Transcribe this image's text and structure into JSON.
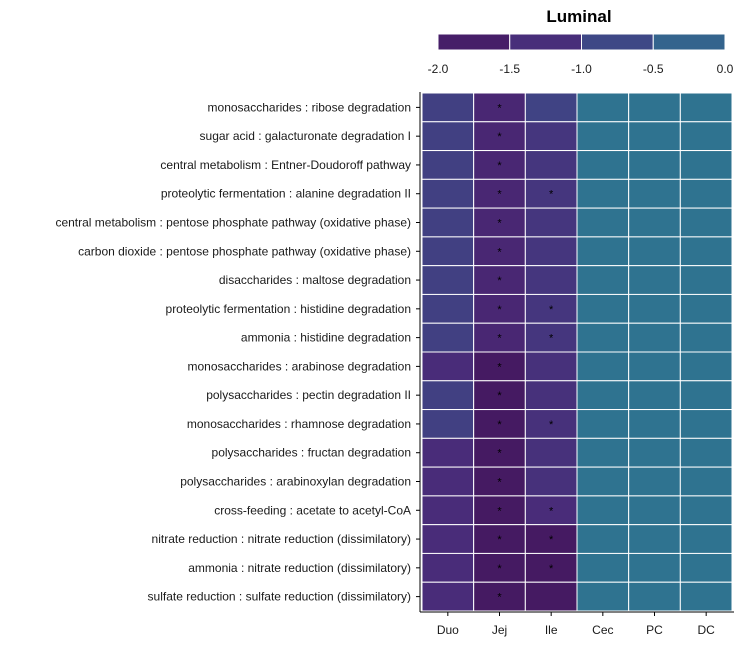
{
  "chart_data": {
    "type": "heatmap",
    "legend": {
      "title": "Luminal",
      "ticks": [
        "-2.0",
        "-1.5",
        "-1.0",
        "-0.5",
        "0.0"
      ],
      "range": [
        -2.0,
        0.0
      ],
      "placement": "top",
      "colors": [
        "#44175e",
        "#4a2a78",
        "#3c4c88",
        "#2f7390"
      ]
    },
    "columns": [
      "Duo",
      "Jej",
      "Ile",
      "Cec",
      "PC",
      "DC"
    ],
    "rows": [
      {
        "label": "monosaccharides : ribose degradation",
        "values": [
          -0.9,
          -1.45,
          -0.85,
          0.0,
          0.0,
          0.0
        ],
        "stars": [
          "",
          "*",
          "",
          "",
          "",
          ""
        ]
      },
      {
        "label": "sugar acid : galacturonate degradation I",
        "values": [
          -0.9,
          -1.45,
          -1.1,
          0.0,
          0.0,
          0.0
        ],
        "stars": [
          "",
          "*",
          "",
          "",
          "",
          ""
        ]
      },
      {
        "label": "central metabolism : Entner-Doudoroff pathway",
        "values": [
          -0.9,
          -1.45,
          -1.1,
          0.0,
          0.0,
          0.0
        ],
        "stars": [
          "",
          "*",
          "",
          "",
          "",
          ""
        ]
      },
      {
        "label": "proteolytic fermentation : alanine degradation II",
        "values": [
          -0.9,
          -1.45,
          -1.1,
          0.0,
          0.0,
          0.0
        ],
        "stars": [
          "",
          "*",
          "*",
          "",
          "",
          ""
        ]
      },
      {
        "label": "central metabolism : pentose phosphate pathway (oxidative phase)",
        "values": [
          -0.9,
          -1.45,
          -1.1,
          0.0,
          0.0,
          0.0
        ],
        "stars": [
          "",
          "*",
          "",
          "",
          "",
          ""
        ]
      },
      {
        "label": "carbon dioxide : pentose phosphate pathway (oxidative phase)",
        "values": [
          -0.9,
          -1.45,
          -1.1,
          0.0,
          0.0,
          0.0
        ],
        "stars": [
          "",
          "*",
          "",
          "",
          "",
          ""
        ]
      },
      {
        "label": "disaccharides : maltose degradation",
        "values": [
          -0.9,
          -1.45,
          -1.1,
          0.0,
          0.0,
          0.0
        ],
        "stars": [
          "",
          "*",
          "",
          "",
          "",
          ""
        ]
      },
      {
        "label": "proteolytic fermentation : histidine degradation",
        "values": [
          -0.9,
          -1.45,
          -1.1,
          0.0,
          0.0,
          0.0
        ],
        "stars": [
          "",
          "*",
          "*",
          "",
          "",
          ""
        ]
      },
      {
        "label": "ammonia : histidine degradation",
        "values": [
          -0.9,
          -1.45,
          -1.1,
          0.0,
          0.0,
          0.0
        ],
        "stars": [
          "",
          "*",
          "*",
          "",
          "",
          ""
        ]
      },
      {
        "label": "monosaccharides : arabinose degradation",
        "values": [
          -1.3,
          -1.9,
          -1.2,
          0.0,
          0.0,
          0.0
        ],
        "stars": [
          "",
          "*",
          "",
          "",
          "",
          ""
        ]
      },
      {
        "label": "polysaccharides : pectin degradation II",
        "values": [
          -0.9,
          -1.9,
          -1.2,
          0.0,
          0.0,
          0.0
        ],
        "stars": [
          "",
          "*",
          "",
          "",
          "",
          ""
        ]
      },
      {
        "label": "monosaccharides : rhamnose degradation",
        "values": [
          -0.9,
          -1.9,
          -1.2,
          0.0,
          0.0,
          0.0
        ],
        "stars": [
          "",
          "*",
          "*",
          "",
          "",
          ""
        ]
      },
      {
        "label": "polysaccharides : fructan degradation",
        "values": [
          -1.3,
          -1.9,
          -1.2,
          0.0,
          0.0,
          0.0
        ],
        "stars": [
          "",
          "*",
          "",
          "",
          "",
          ""
        ]
      },
      {
        "label": "polysaccharides : arabinoxylan degradation",
        "values": [
          -1.3,
          -1.9,
          -1.2,
          0.0,
          0.0,
          0.0
        ],
        "stars": [
          "",
          "*",
          "",
          "",
          "",
          ""
        ]
      },
      {
        "label": "cross-feeding : acetate to acetyl-CoA",
        "values": [
          -1.3,
          -1.9,
          -1.3,
          0.0,
          0.0,
          0.0
        ],
        "stars": [
          "",
          "*",
          "*",
          "",
          "",
          ""
        ]
      },
      {
        "label": "nitrate reduction : nitrate reduction (dissimilatory)",
        "values": [
          -1.3,
          -1.9,
          -1.9,
          0.0,
          0.0,
          0.0
        ],
        "stars": [
          "",
          "*",
          "*",
          "",
          "",
          ""
        ]
      },
      {
        "label": "ammonia : nitrate reduction (dissimilatory)",
        "values": [
          -1.3,
          -1.9,
          -1.9,
          0.0,
          0.0,
          0.0
        ],
        "stars": [
          "",
          "*",
          "*",
          "",
          "",
          ""
        ]
      },
      {
        "label": "sulfate reduction : sulfate reduction (dissimilatory)",
        "values": [
          -1.3,
          -1.9,
          -1.9,
          0.0,
          0.0,
          0.0
        ],
        "stars": [
          "",
          "*",
          "",
          "",
          "",
          ""
        ]
      }
    ]
  }
}
